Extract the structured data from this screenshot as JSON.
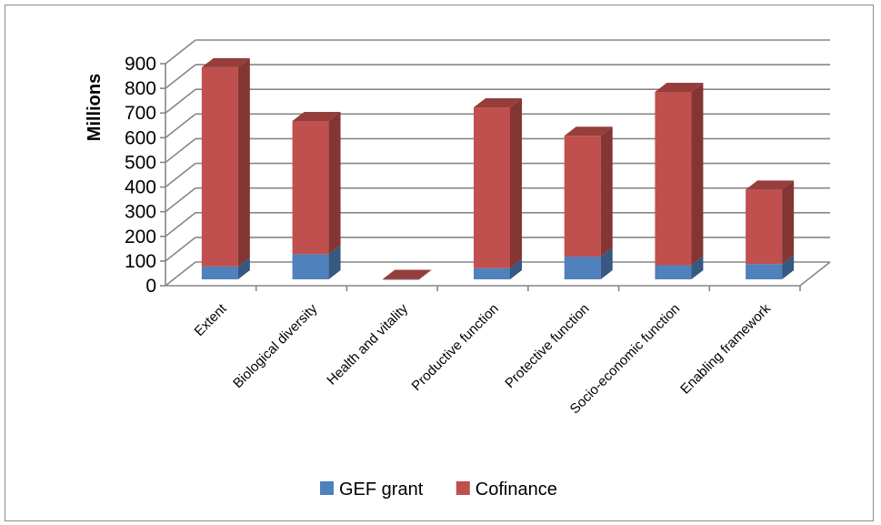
{
  "chart_data": {
    "type": "bar",
    "stacked": true,
    "three_d": true,
    "title": "",
    "xlabel": "",
    "ylabel": "Millions",
    "ylim": [
      0,
      900
    ],
    "yticks": [
      0,
      100,
      200,
      300,
      400,
      500,
      600,
      700,
      800,
      900
    ],
    "grid": true,
    "legend_position": "bottom",
    "categories": [
      "Extent",
      "Biological diversity",
      "Health and vitality",
      "Productive function",
      "Protective function",
      "Socio-economic function",
      "Enabling framework"
    ],
    "series": [
      {
        "name": "GEF grant",
        "color": "#4f81bd",
        "values": [
          52,
          102,
          0,
          45,
          92,
          57,
          62
        ]
      },
      {
        "name": "Cofinance",
        "color": "#c0504d",
        "values": [
          808,
          540,
          2,
          652,
          490,
          703,
          302
        ]
      }
    ]
  }
}
